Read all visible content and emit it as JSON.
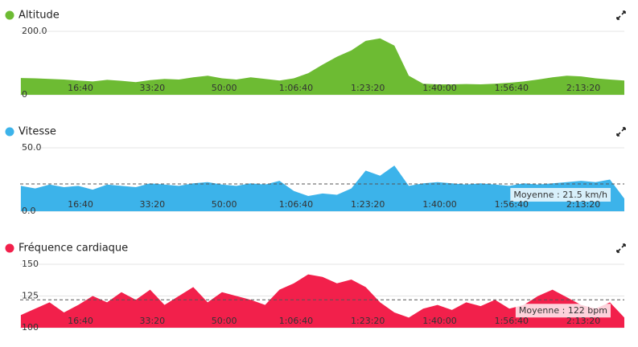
{
  "chart_data": [
    {
      "type": "area",
      "title": "Altitude",
      "color": "#6dbb33",
      "x": [
        170,
        370,
        570,
        770,
        970,
        1170,
        1370,
        1570,
        1770,
        1970,
        2170,
        2370,
        2570,
        2770,
        2970,
        3170,
        3370,
        3570,
        3770,
        3970,
        4170,
        4370,
        4570,
        4770,
        4970,
        5170,
        5370,
        5570,
        5770,
        5970,
        6170,
        6370,
        6570,
        6770,
        6970,
        7170,
        7370,
        7570,
        7770,
        7970,
        8170,
        8370,
        8570
      ],
      "values": [
        53,
        52,
        50,
        48,
        45,
        42,
        47,
        44,
        40,
        46,
        50,
        48,
        55,
        60,
        52,
        48,
        55,
        50,
        45,
        52,
        68,
        95,
        120,
        140,
        170,
        178,
        155,
        60,
        35,
        33,
        33,
        34,
        33,
        35,
        38,
        42,
        48,
        55,
        60,
        58,
        52,
        48,
        45
      ],
      "xlim": [
        160,
        8570
      ],
      "ylim": [
        0,
        200
      ],
      "xticks": [
        {
          "value": 1000,
          "label": "16:40"
        },
        {
          "value": 2000,
          "label": "33:20"
        },
        {
          "value": 3000,
          "label": "50:00"
        },
        {
          "value": 4000,
          "label": "1:06:40"
        },
        {
          "value": 5000,
          "label": "1:23:20"
        },
        {
          "value": 6000,
          "label": "1:40:00"
        },
        {
          "value": 7000,
          "label": "1:56:40"
        },
        {
          "value": 8000,
          "label": "2:13:20"
        }
      ],
      "yticks": [
        0,
        {
          "value": 200,
          "label": "200.0"
        }
      ],
      "grid": true
    },
    {
      "type": "area",
      "title": "Vitesse",
      "color": "#3cb3ea",
      "x": [
        170,
        370,
        570,
        770,
        970,
        1170,
        1370,
        1570,
        1770,
        1970,
        2170,
        2370,
        2570,
        2770,
        2970,
        3170,
        3370,
        3570,
        3770,
        3970,
        4170,
        4370,
        4570,
        4770,
        4970,
        5170,
        5370,
        5570,
        5770,
        5970,
        6170,
        6370,
        6570,
        6770,
        6970,
        7170,
        7370,
        7570,
        7770,
        7970,
        8170,
        8370,
        8570
      ],
      "values": [
        20,
        18,
        21,
        19,
        20,
        17,
        21,
        20,
        19,
        22,
        21,
        20,
        22,
        23,
        21,
        20,
        22,
        21,
        24,
        16,
        12,
        14,
        13,
        18,
        32,
        28,
        36,
        20,
        22,
        23,
        22,
        21,
        22,
        21,
        20,
        22,
        21,
        22,
        23,
        24,
        23,
        25,
        10
      ],
      "xlim": [
        160,
        8570
      ],
      "ylim": [
        0,
        50
      ],
      "xticks": [
        {
          "value": 1000,
          "label": "16:40"
        },
        {
          "value": 2000,
          "label": "33:20"
        },
        {
          "value": 3000,
          "label": "50:00"
        },
        {
          "value": 4000,
          "label": "1:06:40"
        },
        {
          "value": 5000,
          "label": "1:23:20"
        },
        {
          "value": 6000,
          "label": "1:40:00"
        },
        {
          "value": 7000,
          "label": "1:56:40"
        },
        {
          "value": 8000,
          "label": "2:13:20"
        }
      ],
      "yticks": [
        {
          "value": 0,
          "label": "0.0"
        },
        {
          "value": 50,
          "label": "50.0"
        }
      ],
      "grid": true,
      "average": 21.5,
      "average_label": "Moyenne : 21.5 km/h"
    },
    {
      "type": "area",
      "title": "Fréquence cardiaque",
      "color": "#f2204b",
      "x": [
        170,
        370,
        570,
        770,
        970,
        1170,
        1370,
        1570,
        1770,
        1970,
        2170,
        2370,
        2570,
        2770,
        2970,
        3170,
        3370,
        3570,
        3770,
        3970,
        4170,
        4370,
        4570,
        4770,
        4970,
        5170,
        5370,
        5570,
        5770,
        5970,
        6170,
        6370,
        6570,
        6770,
        6970,
        7170,
        7370,
        7570,
        7770,
        7970,
        8170,
        8370,
        8570
      ],
      "values": [
        110,
        115,
        120,
        112,
        118,
        125,
        120,
        128,
        122,
        130,
        118,
        125,
        132,
        120,
        128,
        125,
        122,
        118,
        130,
        135,
        142,
        140,
        135,
        138,
        132,
        120,
        112,
        108,
        115,
        118,
        114,
        120,
        117,
        122,
        115,
        118,
        125,
        130,
        124,
        118,
        115,
        120,
        108
      ],
      "xlim": [
        160,
        8570
      ],
      "ylim": [
        100,
        150
      ],
      "xticks": [
        {
          "value": 1000,
          "label": "16:40"
        },
        {
          "value": 2000,
          "label": "33:20"
        },
        {
          "value": 3000,
          "label": "50:00"
        },
        {
          "value": 4000,
          "label": "1:06:40"
        },
        {
          "value": 5000,
          "label": "1:23:20"
        },
        {
          "value": 6000,
          "label": "1:40:00"
        },
        {
          "value": 7000,
          "label": "1:56:40"
        },
        {
          "value": 8000,
          "label": "2:13:20"
        }
      ],
      "yticks": [
        100,
        125,
        150
      ],
      "grid": true,
      "average": 122,
      "average_label": "Moyenne : 122 bpm"
    }
  ]
}
